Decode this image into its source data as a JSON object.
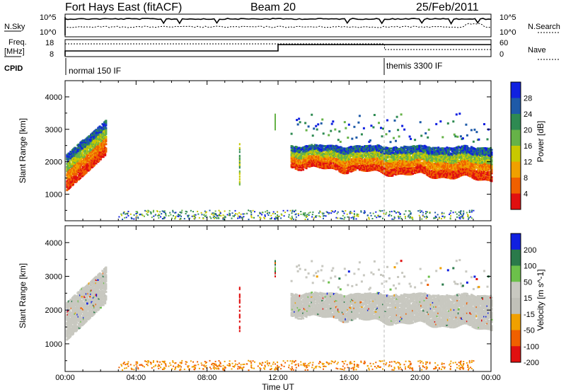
{
  "header": {
    "station": "Fort Hays East (fitACF)",
    "beam": "Beam 20",
    "date": "25/Feb/2011"
  },
  "top_panels": {
    "nsky_label": "N.Sky",
    "nsky_ticks": [
      "10^5",
      "10^0"
    ],
    "nsearch_label": "N.Search",
    "nsearch_ticks": [
      "10^5",
      "10^0"
    ],
    "freq_label_1": "Freq.",
    "freq_label_2": "[MHz]",
    "freq_ticks": [
      "18",
      "8"
    ],
    "nave_label": "Nave",
    "nave_ticks": [
      "60",
      "0"
    ],
    "cpid_label": "CPID",
    "cpid_segments": [
      {
        "name": "normal 150 IF",
        "start_hour": 0
      },
      {
        "name": "themis 3300 IF",
        "start_hour": 18
      }
    ]
  },
  "colors": {
    "power": [
      "#1020e0",
      "#1e5aa8",
      "#2e8a52",
      "#66b248",
      "#c8c800",
      "#f0a000",
      "#f06000",
      "#e01010"
    ],
    "velocity": [
      "#1020e0",
      "#2a7a4a",
      "#6cc04a",
      "#c8c8c0",
      "#c0c0b8",
      "#f0a000",
      "#f06000",
      "#e01010"
    ]
  },
  "chart_data": [
    {
      "type": "heatmap",
      "name": "power",
      "ylabel": "Slant Range [km]",
      "colorbar_label": "Power [dB]",
      "colorbar_ticks": [
        "28",
        "24",
        "20",
        "16",
        "12",
        "8",
        "4"
      ],
      "x_range_hours": [
        0,
        24
      ],
      "y_range_km": [
        180,
        4500
      ],
      "yticks": [
        1000,
        2000,
        3000,
        4000
      ],
      "ytick_labels": [
        "1000",
        "2000",
        "3000",
        "4000"
      ]
    },
    {
      "type": "heatmap",
      "name": "velocity",
      "ylabel": "Slant Range [km]",
      "colorbar_label": "Velocity [m s^-1]",
      "colorbar_ticks": [
        "200",
        "100",
        "50",
        "15",
        "-15",
        "-50",
        "-100",
        "-200"
      ],
      "x_range_hours": [
        0,
        24
      ],
      "y_range_km": [
        180,
        4500
      ],
      "yticks": [
        1000,
        2000,
        3000,
        4000
      ],
      "ytick_labels": [
        "1000",
        "2000",
        "3000",
        "4000"
      ]
    }
  ],
  "x_axis": {
    "label": "Time UT",
    "tick_hours": [
      0,
      4,
      8,
      12,
      16,
      20,
      24
    ],
    "tick_labels": [
      "00:00",
      "04:00",
      "08:00",
      "12:00",
      "16:00",
      "20:00",
      "00:00"
    ]
  }
}
